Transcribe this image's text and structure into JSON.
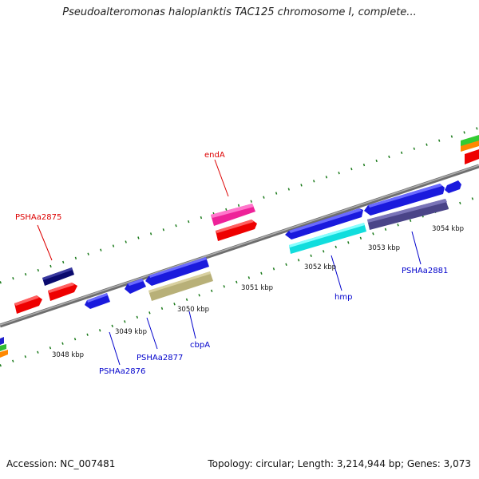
{
  "title": "Pseudoalteromonas haloplanktis TAC125 chromosome I, complete...",
  "footer": {
    "accession": "Accession: NC_007481",
    "summary": "Topology: circular; Length: 3,214,944 bp; Genes: 3,073"
  },
  "colors": {
    "backbone": "#8c8c8c",
    "tick": "#1a7a1a",
    "label_blue": "#0000cc",
    "label_red": "#dd0000"
  },
  "axis_labels": [
    "3048 kbp",
    "3049 kbp",
    "3050 kbp",
    "3051 kbp",
    "3052 kbp",
    "3053 kbp",
    "3054 kbp"
  ],
  "gene_labels": {
    "psha2875": "PSHAa2875",
    "enda": "endA",
    "psha2876": "PSHAa2876",
    "psha2877": "PSHAa2877",
    "cbpa": "cbpA",
    "hmp": "hmp",
    "psha2881": "PSHAa2881"
  }
}
